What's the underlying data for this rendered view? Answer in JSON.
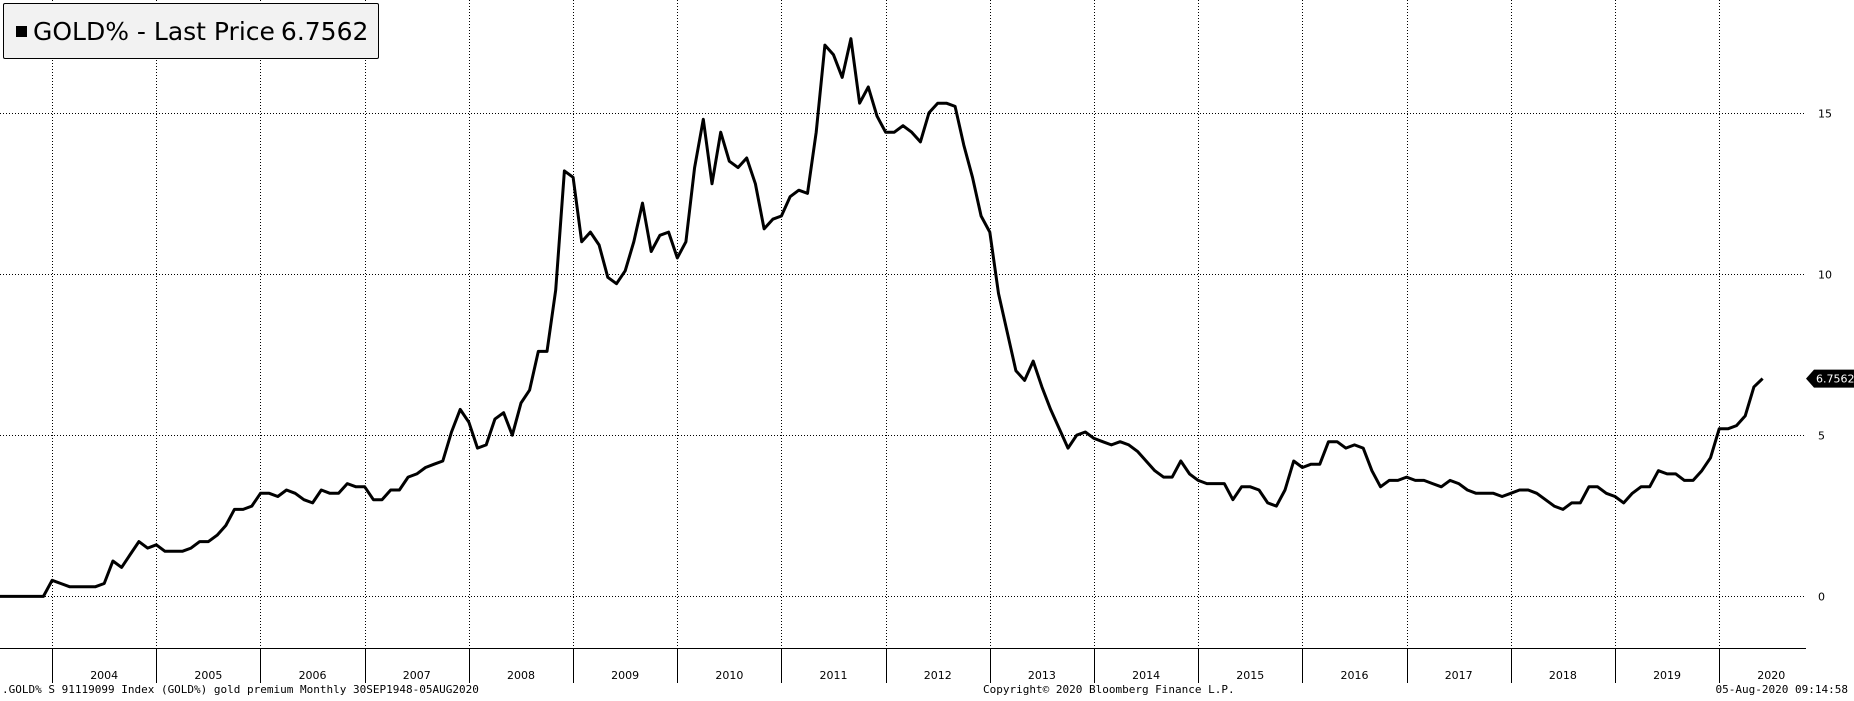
{
  "legend": {
    "series_label": "GOLD% - Last Price",
    "last_value": "6.7562"
  },
  "footer": {
    "left": ".GOLD% S 91119099 Index (GOLD%) gold premium  Monthly 30SEP1948-05AUG2020",
    "center": "Copyright© 2020 Bloomberg Finance L.P.",
    "right": "05-Aug-2020 09:14:58"
  },
  "colors": {
    "line": "#000000",
    "grid": "#000000",
    "background": "#ffffff",
    "legend_bg": "#f2f2f2"
  },
  "chart_data": {
    "type": "line",
    "title": "",
    "xlabel": "",
    "ylabel": "",
    "x_start": "2003-07",
    "x_end": "2020-06",
    "xlim": [
      "2003-07",
      "2020-11"
    ],
    "ylim": [
      -1.6,
      18.5
    ],
    "y_ticks": [
      0,
      5,
      10,
      15
    ],
    "x_tick_labels": [
      "2004",
      "2005",
      "2006",
      "2007",
      "2008",
      "2009",
      "2010",
      "2011",
      "2012",
      "2013",
      "2014",
      "2015",
      "2016",
      "2017",
      "2018",
      "2019",
      "2020"
    ],
    "grid": true,
    "y_axis_position": "right",
    "last_price_label": "6.7562",
    "series": [
      {
        "name": "GOLD%",
        "frequency": "monthly",
        "values": [
          0,
          0,
          0,
          0,
          0,
          0,
          0.5,
          0.4,
          0.3,
          0.3,
          0.3,
          0.3,
          0.4,
          1.1,
          0.9,
          1.3,
          1.7,
          1.5,
          1.6,
          1.4,
          1.4,
          1.4,
          1.5,
          1.7,
          1.7,
          1.9,
          2.2,
          2.7,
          2.7,
          2.8,
          3.2,
          3.2,
          3.1,
          3.3,
          3.2,
          3.0,
          2.9,
          3.3,
          3.2,
          3.2,
          3.5,
          3.4,
          3.4,
          3.0,
          3.0,
          3.3,
          3.3,
          3.7,
          3.8,
          4.0,
          4.1,
          4.2,
          5.1,
          5.8,
          5.4,
          4.6,
          4.7,
          5.5,
          5.7,
          5.0,
          6.0,
          6.4,
          7.6,
          7.6,
          9.5,
          13.2,
          13.0,
          11.0,
          11.3,
          10.9,
          9.9,
          9.7,
          10.1,
          11.0,
          12.2,
          10.7,
          11.2,
          11.3,
          10.5,
          11.0,
          13.3,
          14.8,
          12.8,
          14.4,
          13.5,
          13.3,
          13.6,
          12.8,
          11.4,
          11.7,
          11.8,
          12.4,
          12.6,
          12.5,
          14.4,
          17.1,
          16.8,
          16.1,
          17.3,
          15.3,
          15.8,
          14.9,
          14.4,
          14.4,
          14.6,
          14.4,
          14.1,
          15.0,
          15.3,
          15.3,
          15.2,
          14.0,
          13.0,
          11.8,
          11.3,
          9.4,
          8.2,
          7.0,
          6.7,
          7.3,
          6.5,
          5.8,
          5.2,
          4.6,
          5.0,
          5.1,
          4.9,
          4.8,
          4.7,
          4.8,
          4.7,
          4.5,
          4.2,
          3.9,
          3.7,
          3.7,
          4.2,
          3.8,
          3.6,
          3.5,
          3.5,
          3.5,
          3.0,
          3.4,
          3.4,
          3.3,
          2.9,
          2.8,
          3.3,
          4.2,
          4.0,
          4.1,
          4.1,
          4.8,
          4.8,
          4.6,
          4.7,
          4.6,
          3.9,
          3.4,
          3.6,
          3.6,
          3.7,
          3.6,
          3.6,
          3.5,
          3.4,
          3.6,
          3.5,
          3.3,
          3.2,
          3.2,
          3.2,
          3.1,
          3.2,
          3.3,
          3.3,
          3.2,
          3.0,
          2.8,
          2.7,
          2.9,
          2.9,
          3.4,
          3.4,
          3.2,
          3.1,
          2.9,
          3.2,
          3.4,
          3.4,
          3.9,
          3.8,
          3.8,
          3.6,
          3.6,
          3.9,
          4.3,
          5.2,
          5.2,
          5.3,
          5.6,
          6.5,
          6.7562
        ]
      }
    ]
  }
}
